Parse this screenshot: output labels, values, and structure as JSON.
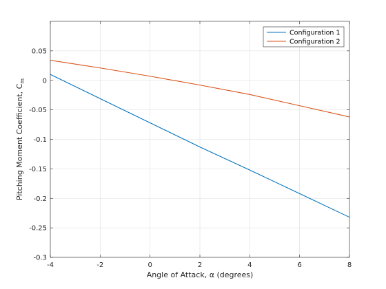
{
  "chart_data": {
    "type": "line",
    "title": "",
    "xlabel": "Angle of Attack, α (degrees)",
    "ylabel_main": "Pitching Moment Coefficient, C",
    "ylabel_sub": "m",
    "xlim": [
      -4,
      8
    ],
    "ylim": [
      -0.3,
      0.1
    ],
    "xticks": [
      -4,
      -2,
      0,
      2,
      4,
      6,
      8
    ],
    "xtick_labels": [
      "-4",
      "-2",
      "0",
      "2",
      "4",
      "6",
      "8"
    ],
    "yticks": [
      -0.3,
      -0.25,
      -0.2,
      -0.15,
      -0.1,
      -0.05,
      0,
      0.05
    ],
    "ytick_labels": [
      "-0.3",
      "-0.25",
      "-0.2",
      "-0.15",
      "-0.1",
      "-0.05",
      "0",
      "0.05"
    ],
    "grid": true,
    "legend_position": "top-right",
    "series": [
      {
        "name": "Configuration 1",
        "color": "#0072BD",
        "x": [
          -4,
          -2,
          0,
          2,
          4,
          6,
          8
        ],
        "y": [
          0.01,
          -0.031,
          -0.072,
          -0.113,
          -0.152,
          -0.192,
          -0.232
        ]
      },
      {
        "name": "Configuration 2",
        "color": "#D95319",
        "x": [
          -4,
          -2,
          0,
          2,
          4,
          6,
          8
        ],
        "y": [
          0.034,
          0.021,
          0.007,
          -0.008,
          -0.024,
          -0.043,
          -0.062
        ]
      }
    ]
  }
}
